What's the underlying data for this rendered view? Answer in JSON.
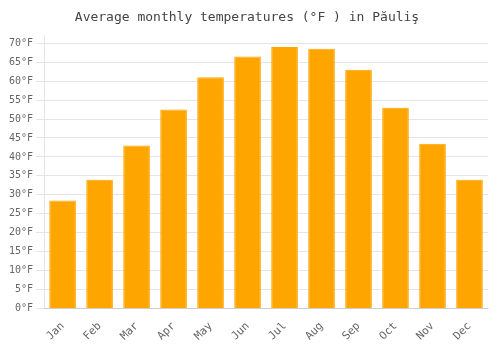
{
  "chart_data": {
    "type": "bar",
    "title": "Average monthly temperatures (°F ) in Păuliş",
    "categories": [
      "Jan",
      "Feb",
      "Mar",
      "Apr",
      "May",
      "Jun",
      "Jul",
      "Aug",
      "Sep",
      "Oct",
      "Nov",
      "Dec"
    ],
    "values": [
      28.5,
      34.0,
      43.0,
      52.5,
      61.0,
      66.5,
      69.0,
      68.5,
      63.0,
      53.0,
      43.5,
      34.0
    ],
    "color": "#FFA500",
    "ylim": [
      0,
      72
    ],
    "yticks": [
      {
        "value": 0,
        "label": "0°F"
      },
      {
        "value": 5,
        "label": "5°F"
      },
      {
        "value": 10,
        "label": "10°F"
      },
      {
        "value": 15,
        "label": "15°F"
      },
      {
        "value": 20,
        "label": "20°F"
      },
      {
        "value": 25,
        "label": "25°F"
      },
      {
        "value": 30,
        "label": "30°F"
      },
      {
        "value": 35,
        "label": "35°F"
      },
      {
        "value": 40,
        "label": "40°F"
      },
      {
        "value": 45,
        "label": "45°F"
      },
      {
        "value": 50,
        "label": "50°F"
      },
      {
        "value": 55,
        "label": "55°F"
      },
      {
        "value": 60,
        "label": "60°F"
      },
      {
        "value": 65,
        "label": "65°F"
      },
      {
        "value": 70,
        "label": "70°F"
      }
    ],
    "grid": "y"
  }
}
